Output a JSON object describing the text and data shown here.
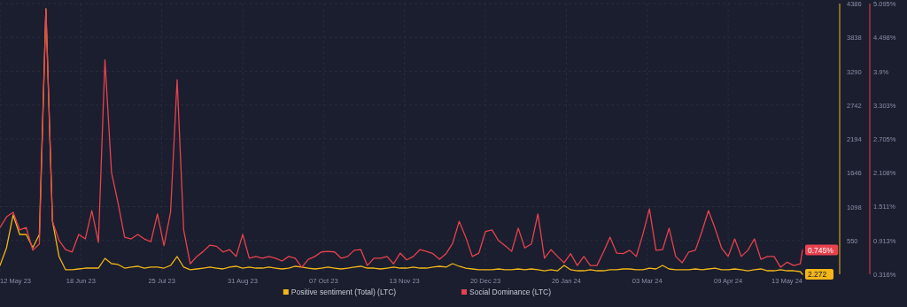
{
  "chart_data": {
    "type": "line",
    "x": [
      "2023-05-12",
      "2023-05-15",
      "2023-05-18",
      "2023-05-21",
      "2023-05-24",
      "2023-05-27",
      "2023-05-30",
      "2023-06-02",
      "2023-06-05",
      "2023-06-08",
      "2023-06-11",
      "2023-06-14",
      "2023-06-17",
      "2023-06-20",
      "2023-06-23",
      "2023-06-26",
      "2023-06-29",
      "2023-07-02",
      "2023-07-05",
      "2023-07-08",
      "2023-07-11",
      "2023-07-14",
      "2023-07-17",
      "2023-07-20",
      "2023-07-23",
      "2023-07-26",
      "2023-07-29",
      "2023-08-01",
      "2023-08-04",
      "2023-08-07",
      "2023-08-10",
      "2023-08-13",
      "2023-08-16",
      "2023-08-19",
      "2023-08-22",
      "2023-08-25",
      "2023-08-28",
      "2023-08-31",
      "2023-09-03",
      "2023-09-06",
      "2023-09-09",
      "2023-09-12",
      "2023-09-15",
      "2023-09-18",
      "2023-09-21",
      "2023-09-24",
      "2023-09-27",
      "2023-09-30",
      "2023-10-03",
      "2023-10-06",
      "2023-10-09",
      "2023-10-12",
      "2023-10-15",
      "2023-10-18",
      "2023-10-21",
      "2023-10-24",
      "2023-10-27",
      "2023-10-30",
      "2023-11-02",
      "2023-11-05",
      "2023-11-08",
      "2023-11-11",
      "2023-11-14",
      "2023-11-17",
      "2023-11-20",
      "2023-11-23",
      "2023-11-26",
      "2023-11-29",
      "2023-12-02",
      "2023-12-05",
      "2023-12-08",
      "2023-12-11",
      "2023-12-14",
      "2023-12-17",
      "2023-12-20",
      "2023-12-23",
      "2023-12-26",
      "2023-12-29",
      "2024-01-01",
      "2024-01-04",
      "2024-01-07",
      "2024-01-10",
      "2024-01-13",
      "2024-01-16",
      "2024-01-19",
      "2024-01-22",
      "2024-01-25",
      "2024-01-28",
      "2024-01-31",
      "2024-02-03",
      "2024-02-06",
      "2024-02-09",
      "2024-02-12",
      "2024-02-15",
      "2024-02-18",
      "2024-02-21",
      "2024-02-24",
      "2024-02-27",
      "2024-03-01",
      "2024-03-04",
      "2024-03-07",
      "2024-03-10",
      "2024-03-13",
      "2024-03-16",
      "2024-03-19",
      "2024-03-22",
      "2024-03-25",
      "2024-03-28",
      "2024-03-31",
      "2024-04-03",
      "2024-04-06",
      "2024-04-09",
      "2024-04-12",
      "2024-04-15",
      "2024-04-18",
      "2024-04-21",
      "2024-04-24",
      "2024-04-27",
      "2024-04-30",
      "2024-05-03",
      "2024-05-06",
      "2024-05-09",
      "2024-05-12",
      "2024-05-13"
    ],
    "xlim": [
      "2023-05-12",
      "2024-05-13"
    ],
    "xticks": [
      {
        "value": "2023-05-12",
        "label": "12 May 23"
      },
      {
        "value": "2023-06-18",
        "label": "18 Jun 23"
      },
      {
        "value": "2023-07-25",
        "label": "25 Jul 23"
      },
      {
        "value": "2023-08-31",
        "label": "31 Aug 23"
      },
      {
        "value": "2023-10-07",
        "label": "07 Oct 23"
      },
      {
        "value": "2023-11-13",
        "label": "13 Nov 23"
      },
      {
        "value": "2023-12-20",
        "label": "20 Dec 23"
      },
      {
        "value": "2024-01-26",
        "label": "26 Jan 24"
      },
      {
        "value": "2024-03-03",
        "label": "03 Mar 24"
      },
      {
        "value": "2024-04-09",
        "label": "09 Apr 24"
      },
      {
        "value": "2024-05-13",
        "label": "13 May 24"
      }
    ],
    "ylim": [
      2,
      4386
    ],
    "yticks": [
      550,
      1098,
      1646,
      2194,
      2742,
      3290,
      3838,
      4386
    ],
    "y2lim": [
      0.316,
      5.095
    ],
    "y2ticks": [
      {
        "value": 0.316,
        "label": "0.316%"
      },
      {
        "value": 0.913,
        "label": "0.913%"
      },
      {
        "value": 1.511,
        "label": "1.511%"
      },
      {
        "value": 2.108,
        "label": "2.108%"
      },
      {
        "value": 2.705,
        "label": "2.705%"
      },
      {
        "value": 3.303,
        "label": "3.303%"
      },
      {
        "value": 3.9,
        "label": "3.9%"
      },
      {
        "value": 4.498,
        "label": "4.498%"
      },
      {
        "value": 5.095,
        "label": "5.095%"
      }
    ],
    "grid": true,
    "legend": "bottom",
    "series": [
      {
        "name": "Positive sentiment (Total) (LTC)",
        "color": "#f2b619",
        "values": [
          145,
          432,
          962,
          647,
          647,
          432,
          647,
          4300,
          862,
          289,
          74,
          74,
          88,
          102,
          102,
          102,
          260,
          174,
          160,
          102,
          117,
          131,
          102,
          117,
          117,
          102,
          145,
          289,
          117,
          74,
          88,
          102,
          117,
          102,
          88,
          117,
          131,
          102,
          117,
          102,
          102,
          117,
          102,
          88,
          102,
          131,
          117,
          102,
          88,
          102,
          117,
          102,
          88,
          102,
          117,
          131,
          102,
          102,
          88,
          102,
          117,
          102,
          102,
          117,
          102,
          102,
          117,
          131,
          117,
          174,
          131,
          102,
          88,
          74,
          74,
          74,
          88,
          74,
          74,
          88,
          74,
          88,
          74,
          59,
          74,
          59,
          145,
          74,
          59,
          59,
          74,
          59,
          59,
          74,
          74,
          88,
          88,
          74,
          74,
          102,
          88,
          145,
          88,
          74,
          74,
          74,
          88,
          74,
          88,
          102,
          74,
          74,
          88,
          74,
          59,
          74,
          88,
          59,
          59,
          74,
          59,
          59,
          45,
          2.272
        ],
        "value_labels": [
          null,
          null,
          null,
          null,
          null,
          null,
          null,
          null,
          null,
          null,
          null,
          null,
          null,
          null,
          null,
          null,
          null,
          null,
          null,
          null,
          null,
          null,
          null,
          null,
          null,
          null,
          null,
          null,
          null,
          null,
          null,
          null,
          null,
          null,
          null,
          null,
          null,
          null,
          null,
          null,
          null,
          null,
          null,
          null,
          null,
          null,
          null,
          null,
          null,
          null,
          null,
          null,
          null,
          null,
          null,
          null,
          null,
          null,
          null,
          null,
          null,
          null,
          null,
          null,
          null,
          null,
          null,
          null,
          null,
          null,
          null,
          null,
          null,
          null,
          null,
          null,
          null,
          null,
          null,
          null,
          null,
          null,
          null,
          null,
          null,
          null,
          null,
          null,
          null,
          null,
          null,
          null,
          null,
          null,
          null,
          null,
          null,
          null,
          null,
          null,
          null,
          null,
          null,
          null,
          null,
          null,
          null,
          null,
          null,
          null,
          null,
          null,
          null,
          null,
          null,
          null,
          null,
          null,
          null,
          null,
          null,
          null,
          null,
          "2.272"
        ]
      },
      {
        "name": "Social Dominance (LTC)",
        "color": "#e8424f",
        "axis": "y2",
        "values": [
          1.14,
          1.33,
          1.41,
          1.1,
          1.14,
          0.74,
          0.85,
          5.0,
          1.25,
          0.91,
          0.75,
          0.71,
          1.02,
          0.94,
          1.44,
          0.88,
          4.1,
          2.11,
          1.57,
          0.97,
          0.94,
          1.02,
          0.94,
          0.89,
          1.38,
          0.82,
          1.41,
          3.75,
          1.1,
          0.5,
          0.63,
          0.72,
          0.83,
          0.81,
          0.71,
          0.75,
          0.63,
          1.02,
          0.6,
          0.63,
          0.6,
          0.63,
          0.6,
          0.55,
          0.63,
          0.6,
          0.44,
          0.58,
          0.63,
          0.71,
          0.72,
          0.71,
          0.6,
          0.63,
          0.74,
          0.75,
          0.47,
          0.6,
          0.6,
          0.63,
          0.5,
          0.69,
          0.57,
          0.63,
          0.75,
          0.72,
          0.68,
          0.58,
          0.68,
          0.86,
          1.25,
          0.97,
          0.63,
          0.69,
          1.07,
          1.1,
          0.91,
          0.82,
          0.72,
          1.13,
          0.78,
          0.85,
          1.38,
          0.6,
          0.75,
          0.63,
          0.52,
          0.68,
          0.47,
          0.63,
          0.47,
          0.47,
          0.71,
          0.97,
          0.69,
          0.68,
          0.74,
          0.63,
          1.02,
          1.47,
          0.74,
          0.75,
          1.13,
          0.63,
          0.52,
          0.71,
          0.74,
          1.07,
          1.44,
          1.13,
          0.78,
          0.63,
          0.94,
          0.63,
          0.74,
          0.94,
          0.58,
          0.63,
          0.63,
          0.44,
          0.53,
          0.47,
          0.5,
          0.745
        ],
        "value_labels": [
          null,
          null,
          null,
          null,
          null,
          null,
          null,
          null,
          null,
          null,
          null,
          null,
          null,
          null,
          null,
          null,
          null,
          null,
          null,
          null,
          null,
          null,
          null,
          null,
          null,
          null,
          null,
          null,
          null,
          null,
          null,
          null,
          null,
          null,
          null,
          null,
          null,
          null,
          null,
          null,
          null,
          null,
          null,
          null,
          null,
          null,
          null,
          null,
          null,
          null,
          null,
          null,
          null,
          null,
          null,
          null,
          null,
          null,
          null,
          null,
          null,
          null,
          null,
          null,
          null,
          null,
          null,
          null,
          null,
          null,
          null,
          null,
          null,
          null,
          null,
          null,
          null,
          null,
          null,
          null,
          null,
          null,
          null,
          null,
          null,
          null,
          null,
          null,
          null,
          null,
          null,
          null,
          null,
          null,
          null,
          null,
          null,
          null,
          null,
          null,
          null,
          null,
          null,
          null,
          null,
          null,
          null,
          null,
          null,
          null,
          null,
          null,
          null,
          null,
          null,
          null,
          null,
          null,
          null,
          null,
          null,
          null,
          null,
          "0.745%"
        ]
      }
    ]
  }
}
